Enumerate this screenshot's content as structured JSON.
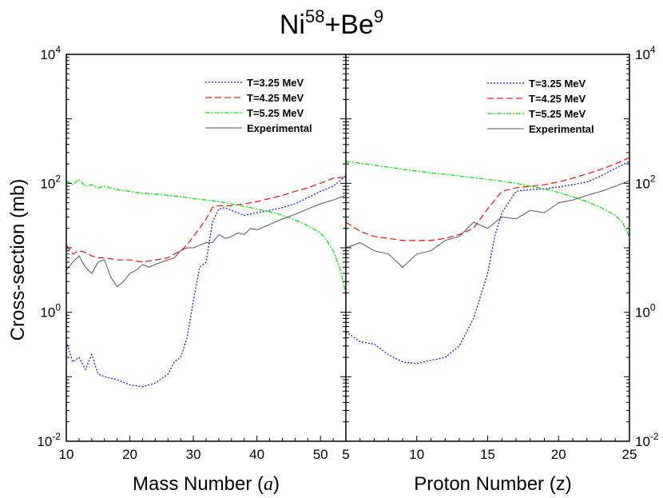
{
  "chart_data": {
    "type": "line",
    "title": {
      "base1": "Ni",
      "sup1": "58",
      "mid": "+Be",
      "sup2": "9"
    },
    "ylabel": "Cross-section (mb)",
    "yscale": "log",
    "ylim": [
      0.01,
      10000
    ],
    "y_ticks": [
      {
        "value": 0.01,
        "base": "10",
        "exp": "-2"
      },
      {
        "value": 1,
        "base": "10",
        "exp": "0"
      },
      {
        "value": 100,
        "base": "10",
        "exp": "2"
      },
      {
        "value": 10000,
        "base": "10",
        "exp": "4"
      }
    ],
    "legend_placement": "top-right",
    "panels": [
      {
        "id": "mass",
        "xlabel_prefix": "Mass Number (",
        "xlabel_var": "a",
        "xlabel_suffix": ")",
        "xlim": [
          10,
          54
        ],
        "x_ticks": [
          "10",
          "20",
          "30",
          "40",
          "50"
        ],
        "series": [
          {
            "name": "T=3.25 MeV",
            "color": "#1a1ad6",
            "dash": "2,2",
            "x": [
              10,
              11,
              12,
              13,
              14,
              15,
              16,
              18,
              20,
              22,
              24,
              26,
              27,
              28,
              29,
              30,
              31,
              32,
              33,
              34,
              35,
              36,
              38,
              40,
              42,
              44,
              46,
              48,
              50,
              52,
              54
            ],
            "y": [
              0.35,
              0.17,
              0.2,
              0.13,
              0.22,
              0.11,
              0.1,
              0.09,
              0.075,
              0.07,
              0.08,
              0.11,
              0.17,
              0.2,
              0.4,
              1.5,
              5,
              6,
              25,
              40,
              42,
              38,
              32,
              35,
              38,
              42,
              48,
              60,
              75,
              90,
              130
            ]
          },
          {
            "name": "T=4.25 MeV",
            "color": "#e02020",
            "dash": "8,4",
            "x": [
              10,
              11,
              12,
              13,
              14,
              15,
              16,
              18,
              20,
              22,
              24,
              26,
              27,
              28,
              29,
              30,
              31,
              32,
              33,
              34,
              36,
              38,
              40,
              42,
              44,
              46,
              48,
              50,
              52,
              54
            ],
            "y": [
              11,
              8,
              9,
              8.5,
              7.5,
              7,
              7,
              6.5,
              6.5,
              6,
              6.5,
              7,
              8,
              9,
              11,
              15,
              20,
              28,
              42,
              45,
              45,
              48,
              52,
              58,
              65,
              75,
              85,
              100,
              120,
              125
            ]
          },
          {
            "name": "T=5.25 MeV",
            "color": "#11dd11",
            "dash": "6,2,2,2",
            "x": [
              10,
              11,
              12,
              13,
              14,
              15,
              16,
              18,
              20,
              22,
              24,
              26,
              28,
              30,
              32,
              34,
              36,
              38,
              40,
              42,
              44,
              46,
              48,
              50,
              51,
              52,
              53,
              54
            ],
            "y": [
              110,
              95,
              115,
              90,
              95,
              85,
              90,
              80,
              75,
              70,
              68,
              65,
              62,
              58,
              55,
              52,
              48,
              44,
              40,
              36,
              32,
              27,
              22,
              17,
              13,
              9,
              5,
              2
            ]
          },
          {
            "name": "Experimental",
            "color": "#555555",
            "dash": "",
            "x": [
              10,
              11,
              12,
              13,
              14,
              15,
              16,
              17,
              18,
              19,
              20,
              21,
              22,
              23,
              24,
              25,
              26,
              27,
              28,
              29,
              30,
              31,
              32,
              33,
              34,
              35,
              36,
              37,
              38,
              39,
              40,
              42,
              44,
              46,
              48,
              50,
              52,
              54
            ],
            "y": [
              4.5,
              6,
              7.5,
              5,
              4,
              6,
              6.5,
              3.5,
              2.5,
              3,
              4,
              4.5,
              5.5,
              5,
              5.5,
              6,
              6.5,
              7,
              9,
              10,
              10,
              11,
              12,
              12,
              16,
              14,
              15,
              17,
              16,
              20,
              19,
              23,
              28,
              33,
              40,
              48,
              55,
              65
            ]
          }
        ]
      },
      {
        "id": "proton",
        "xlabel_prefix": "Proton Number (z)",
        "xlabel_var": "",
        "xlabel_suffix": "",
        "xlim": [
          5,
          25
        ],
        "x_ticks": [
          "5",
          "10",
          "15",
          "20",
          "25"
        ],
        "series": [
          {
            "name": "T=3.25 MeV",
            "color": "#1a1ad6",
            "dash": "2,2",
            "x": [
              5,
              6,
              7,
              8,
              9,
              10,
              11,
              12,
              13,
              14,
              15,
              15.5,
              16,
              17,
              18,
              19,
              20,
              21,
              22,
              23,
              24,
              25
            ],
            "y": [
              0.5,
              0.35,
              0.32,
              0.22,
              0.17,
              0.16,
              0.18,
              0.2,
              0.3,
              0.8,
              4,
              15,
              35,
              75,
              80,
              82,
              88,
              95,
              105,
              130,
              170,
              220
            ]
          },
          {
            "name": "T=4.25 MeV",
            "color": "#e02020",
            "dash": "8,4",
            "x": [
              5,
              6,
              7,
              8,
              9,
              10,
              11,
              12,
              13,
              14,
              15,
              16,
              17,
              18,
              19,
              20,
              21,
              22,
              23,
              24,
              25
            ],
            "y": [
              25,
              18,
              15,
              14,
              13,
              13,
              13,
              14,
              16,
              20,
              40,
              75,
              85,
              90,
              95,
              105,
              120,
              140,
              165,
              200,
              250
            ]
          },
          {
            "name": "T=5.25 MeV",
            "color": "#11dd11",
            "dash": "6,2,2,2",
            "x": [
              5,
              6,
              7,
              8,
              9,
              10,
              11,
              12,
              13,
              14,
              15,
              16,
              17,
              18,
              19,
              20,
              21,
              22,
              23,
              24,
              24.5,
              25
            ],
            "y": [
              220,
              205,
              190,
              178,
              165,
              155,
              145,
              138,
              130,
              122,
              115,
              108,
              100,
              90,
              82,
              72,
              62,
              52,
              42,
              32,
              25,
              15
            ]
          },
          {
            "name": "Experimental",
            "color": "#555555",
            "dash": "",
            "x": [
              5,
              6,
              7,
              8,
              9,
              10,
              11,
              12,
              13,
              14,
              15,
              16,
              17,
              18,
              19,
              20,
              21,
              22,
              23,
              24,
              25
            ],
            "y": [
              10,
              12,
              9,
              8,
              5,
              8,
              9,
              13,
              15,
              25,
              20,
              30,
              28,
              38,
              35,
              50,
              55,
              65,
              75,
              90,
              110
            ]
          }
        ]
      }
    ]
  }
}
